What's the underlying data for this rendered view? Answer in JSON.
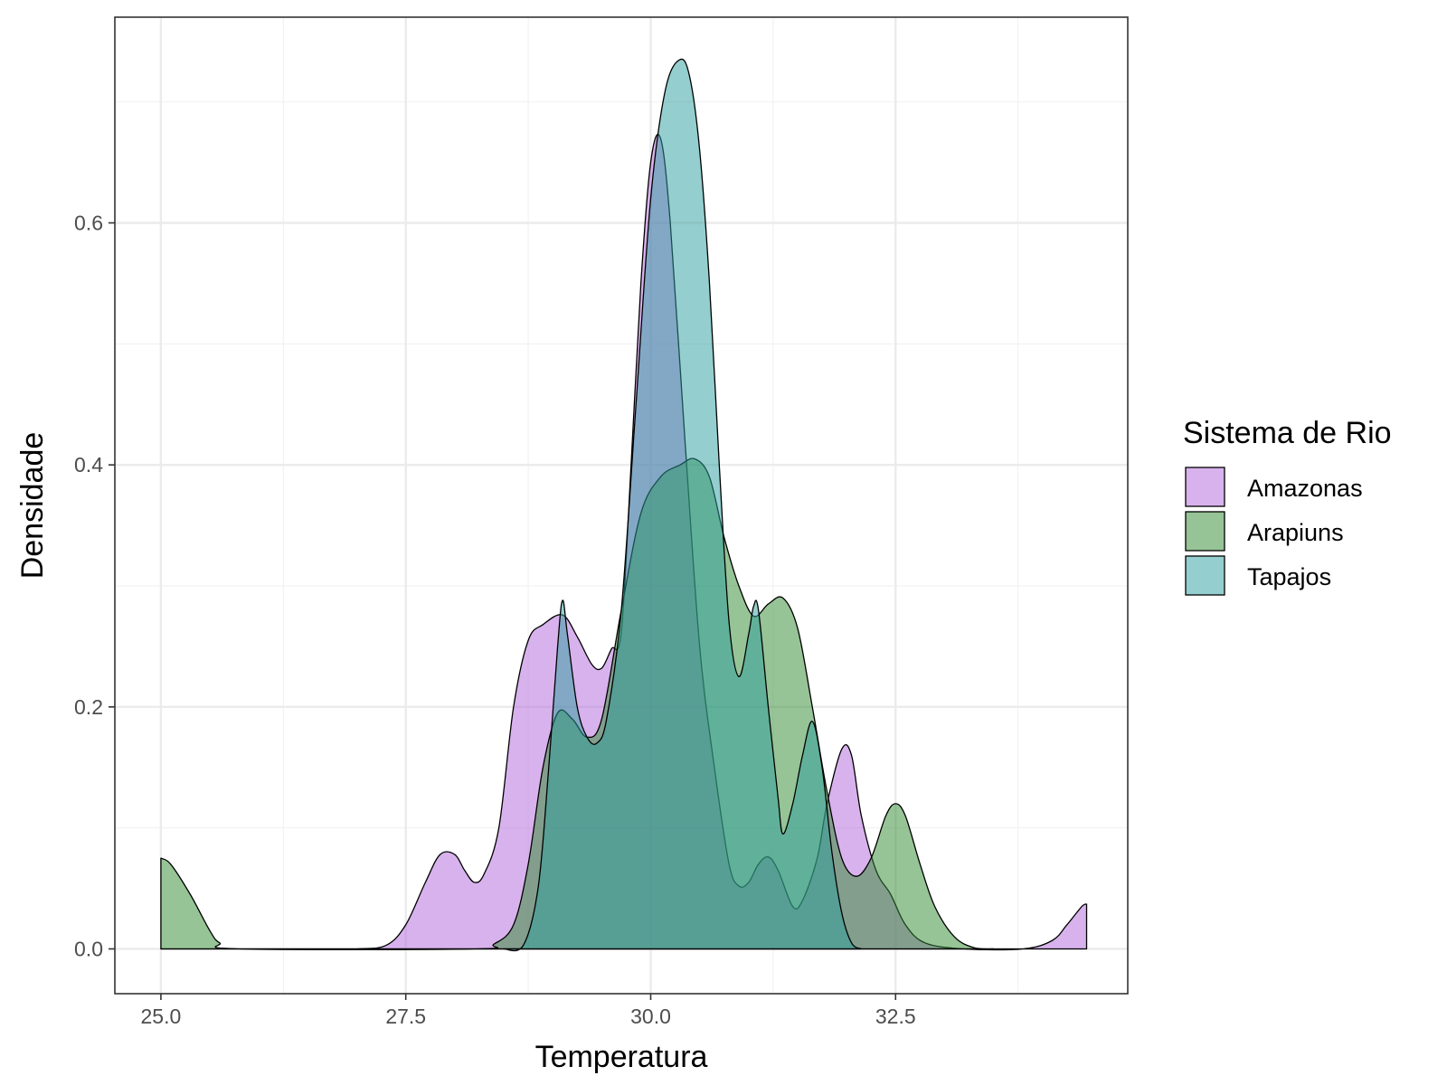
{
  "chart_data": {
    "type": "area",
    "xlabel": "Temperatura",
    "ylabel": "Densidade",
    "xlim": [
      24.53,
      34.87
    ],
    "ylim": [
      -0.037,
      0.77
    ],
    "x_ticks": [
      25.0,
      27.5,
      30.0,
      32.5
    ],
    "x_tick_labels": [
      "25.0",
      "27.5",
      "30.0",
      "32.5"
    ],
    "y_ticks": [
      0.0,
      0.2,
      0.4,
      0.6
    ],
    "y_tick_labels": [
      "0.0",
      "0.2",
      "0.4",
      "0.6"
    ],
    "grid": true,
    "legend": {
      "title": "Sistema de Rio",
      "placement": "right"
    },
    "series": [
      {
        "name": "Amazonas",
        "color": "#b266db",
        "points": [
          [
            25.0,
            0.0
          ],
          [
            26.5,
            0.0
          ],
          [
            27.0,
            0.0
          ],
          [
            27.3,
            0.003
          ],
          [
            27.5,
            0.02
          ],
          [
            27.7,
            0.055
          ],
          [
            27.85,
            0.078
          ],
          [
            28.0,
            0.078
          ],
          [
            28.1,
            0.065
          ],
          [
            28.2,
            0.055
          ],
          [
            28.3,
            0.062
          ],
          [
            28.45,
            0.1
          ],
          [
            28.6,
            0.2
          ],
          [
            28.75,
            0.255
          ],
          [
            28.9,
            0.268
          ],
          [
            29.1,
            0.276
          ],
          [
            29.25,
            0.258
          ],
          [
            29.4,
            0.235
          ],
          [
            29.5,
            0.232
          ],
          [
            29.6,
            0.248
          ],
          [
            29.7,
            0.262
          ],
          [
            29.8,
            0.4
          ],
          [
            29.9,
            0.55
          ],
          [
            30.0,
            0.65
          ],
          [
            30.1,
            0.67
          ],
          [
            30.2,
            0.6
          ],
          [
            30.35,
            0.42
          ],
          [
            30.5,
            0.25
          ],
          [
            30.65,
            0.15
          ],
          [
            30.8,
            0.07
          ],
          [
            30.9,
            0.052
          ],
          [
            31.0,
            0.055
          ],
          [
            31.1,
            0.07
          ],
          [
            31.2,
            0.076
          ],
          [
            31.3,
            0.065
          ],
          [
            31.45,
            0.035
          ],
          [
            31.55,
            0.04
          ],
          [
            31.7,
            0.075
          ],
          [
            31.8,
            0.12
          ],
          [
            31.95,
            0.165
          ],
          [
            32.05,
            0.16
          ],
          [
            32.15,
            0.11
          ],
          [
            32.3,
            0.065
          ],
          [
            32.45,
            0.045
          ],
          [
            32.6,
            0.02
          ],
          [
            32.8,
            0.005
          ],
          [
            33.2,
            0.0
          ],
          [
            33.8,
            0.0
          ],
          [
            34.1,
            0.007
          ],
          [
            34.25,
            0.02
          ],
          [
            34.4,
            0.035
          ],
          [
            34.45,
            0.037
          ]
        ]
      },
      {
        "name": "Arapiuns",
        "color": "#2e8a2e",
        "points": [
          [
            25.0,
            0.075
          ],
          [
            25.1,
            0.07
          ],
          [
            25.3,
            0.045
          ],
          [
            25.5,
            0.015
          ],
          [
            25.6,
            0.005
          ],
          [
            25.8,
            0.0
          ],
          [
            28.2,
            0.0
          ],
          [
            28.4,
            0.004
          ],
          [
            28.6,
            0.02
          ],
          [
            28.75,
            0.07
          ],
          [
            28.9,
            0.15
          ],
          [
            29.05,
            0.195
          ],
          [
            29.2,
            0.19
          ],
          [
            29.35,
            0.175
          ],
          [
            29.5,
            0.19
          ],
          [
            29.7,
            0.28
          ],
          [
            29.9,
            0.36
          ],
          [
            30.1,
            0.39
          ],
          [
            30.3,
            0.4
          ],
          [
            30.45,
            0.405
          ],
          [
            30.6,
            0.39
          ],
          [
            30.75,
            0.34
          ],
          [
            30.9,
            0.3
          ],
          [
            31.05,
            0.275
          ],
          [
            31.2,
            0.285
          ],
          [
            31.35,
            0.29
          ],
          [
            31.5,
            0.265
          ],
          [
            31.65,
            0.2
          ],
          [
            31.8,
            0.13
          ],
          [
            31.95,
            0.075
          ],
          [
            32.1,
            0.06
          ],
          [
            32.25,
            0.075
          ],
          [
            32.4,
            0.11
          ],
          [
            32.5,
            0.12
          ],
          [
            32.6,
            0.11
          ],
          [
            32.75,
            0.07
          ],
          [
            32.9,
            0.035
          ],
          [
            33.1,
            0.01
          ],
          [
            33.3,
            0.001
          ],
          [
            33.5,
            0.0
          ]
        ]
      },
      {
        "name": "Tapajos",
        "color": "#2b9e9e",
        "points": [
          [
            28.5,
            0.0
          ],
          [
            28.7,
            0.003
          ],
          [
            28.85,
            0.05
          ],
          [
            28.95,
            0.14
          ],
          [
            29.05,
            0.25
          ],
          [
            29.1,
            0.288
          ],
          [
            29.15,
            0.26
          ],
          [
            29.25,
            0.2
          ],
          [
            29.35,
            0.175
          ],
          [
            29.45,
            0.17
          ],
          [
            29.55,
            0.19
          ],
          [
            29.7,
            0.28
          ],
          [
            29.85,
            0.45
          ],
          [
            30.0,
            0.62
          ],
          [
            30.15,
            0.71
          ],
          [
            30.3,
            0.735
          ],
          [
            30.4,
            0.72
          ],
          [
            30.5,
            0.66
          ],
          [
            30.6,
            0.55
          ],
          [
            30.7,
            0.4
          ],
          [
            30.8,
            0.27
          ],
          [
            30.9,
            0.225
          ],
          [
            31.0,
            0.26
          ],
          [
            31.05,
            0.283
          ],
          [
            31.1,
            0.28
          ],
          [
            31.2,
            0.2
          ],
          [
            31.3,
            0.125
          ],
          [
            31.35,
            0.095
          ],
          [
            31.45,
            0.12
          ],
          [
            31.55,
            0.16
          ],
          [
            31.65,
            0.188
          ],
          [
            31.75,
            0.15
          ],
          [
            31.85,
            0.08
          ],
          [
            31.95,
            0.03
          ],
          [
            32.05,
            0.005
          ],
          [
            32.15,
            0.0
          ]
        ]
      }
    ]
  }
}
